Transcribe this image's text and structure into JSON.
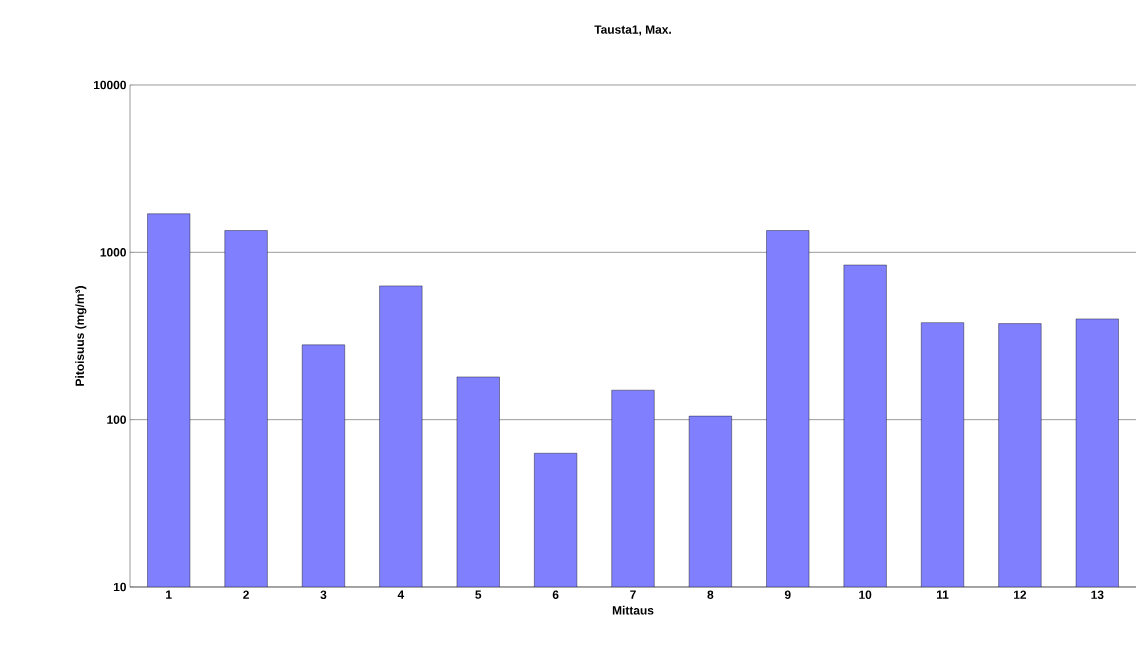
{
  "chart_data": {
    "type": "bar",
    "title": "Tausta1, Max.",
    "xlabel": "Mittaus",
    "ylabel": "Pitoisuus (mg/m³)",
    "categories": [
      "1",
      "2",
      "3",
      "4",
      "5",
      "6",
      "7",
      "8",
      "9",
      "10",
      "11",
      "12",
      "13"
    ],
    "values": [
      1700,
      1350,
      280,
      630,
      180,
      63,
      150,
      105,
      1350,
      840,
      380,
      375,
      400
    ],
    "color": "#8080ff",
    "log": true,
    "grid": "y",
    "ylim": [
      10,
      10000
    ],
    "yticks": [
      10,
      100,
      1000,
      10000
    ]
  }
}
